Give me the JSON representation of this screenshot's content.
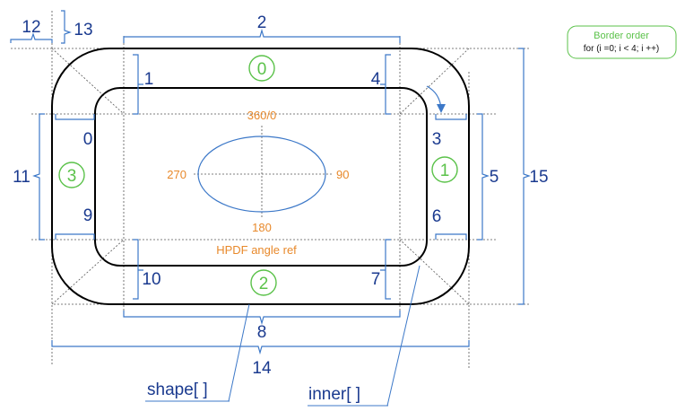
{
  "labels": {
    "n0": "0",
    "n1": "1",
    "n2": "2",
    "n3": "3",
    "n4": "4",
    "n5": "5",
    "n6": "6",
    "n7": "7",
    "n8": "8",
    "n9": "9",
    "n10": "10",
    "n11": "11",
    "n12": "12",
    "n13": "13",
    "n14": "14",
    "n15": "15"
  },
  "borders": {
    "b0": "0",
    "b1": "1",
    "b2": "2",
    "b3": "3"
  },
  "angles": {
    "top": "360/0",
    "right": "90",
    "bottom": "180",
    "left": "270"
  },
  "angle_caption": "HPDF angle ref",
  "note": {
    "title": "Border order",
    "body": "for (i =0; i < 4; i ++)"
  },
  "arrays": {
    "shape": "shape[ ]",
    "inner": "inner[ ]"
  },
  "colors": {
    "blue": "#1a3a8f",
    "orange": "#e8892b",
    "green": "#5bc24a",
    "brace": "#3c78c8"
  }
}
